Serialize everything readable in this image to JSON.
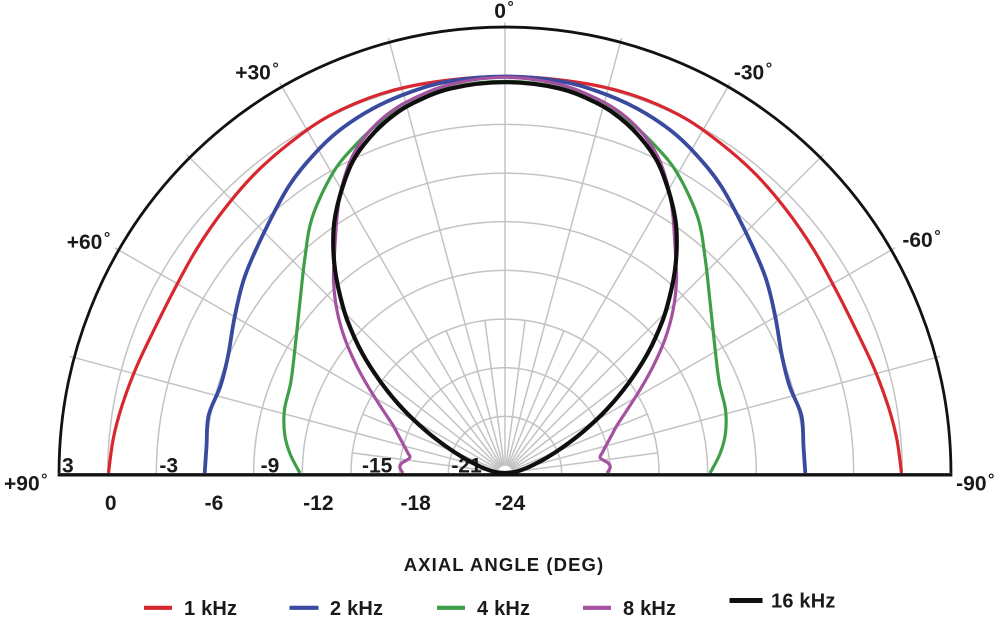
{
  "page": {
    "background": "#ffffff",
    "text_color": "#1a1a1a"
  },
  "chart_data": {
    "type": "line",
    "subtype": "half-polar-directivity",
    "title": "",
    "xlabel": "AXIAL ANGLE (DEG)",
    "radial_unit": "dB",
    "radial_range_db": [
      3,
      -24
    ],
    "ring_step_db": 3,
    "radial_ticks_above_axis": {
      "labels": [
        "3",
        "-3",
        "-9",
        "-15",
        "-21"
      ],
      "values_db": [
        3,
        -3,
        -9,
        -15,
        -21
      ]
    },
    "radial_ticks_below_axis": {
      "labels": [
        "0",
        "-6",
        "-12",
        "-18",
        "-24"
      ],
      "values_db": [
        0,
        -6,
        -12,
        -18,
        -24
      ]
    },
    "angle_ticks": [
      {
        "label": "0°",
        "deg": 0
      },
      {
        "label": "+30°",
        "deg": 30
      },
      {
        "label": "-30°",
        "deg": -30
      },
      {
        "label": "+60°",
        "deg": 60
      },
      {
        "label": "-60°",
        "deg": -60
      },
      {
        "label": "+90°",
        "deg": 90
      },
      {
        "label": "-90°",
        "deg": -90
      }
    ],
    "grid": {
      "color": "#c3c3c5",
      "spoke_major_step_deg": 15,
      "spoke_minor_step_deg": 7.5,
      "minor_spokes_end_db": -15,
      "outer_ring_db": 3,
      "inner_ring_db": -24
    },
    "axis_color": "#121212",
    "legend_position": "bottom",
    "series": [
      {
        "name": "1 kHz",
        "color": "#d7282f",
        "symmetric": true,
        "points_deg_db": [
          [
            0,
            -0.05
          ],
          [
            10,
            0.0
          ],
          [
            18,
            0.1
          ],
          [
            26,
            0.05
          ],
          [
            33,
            -0.2
          ],
          [
            40,
            -0.45
          ],
          [
            47,
            -0.75
          ],
          [
            54,
            -1.0
          ],
          [
            61,
            -1.18
          ],
          [
            68,
            -1.12
          ],
          [
            74,
            -0.85
          ],
          [
            80,
            -0.52
          ],
          [
            85,
            -0.25
          ],
          [
            90,
            -0.05
          ]
        ]
      },
      {
        "name": "2 kHz",
        "color": "#3a4a9e",
        "symmetric": true,
        "points_deg_db": [
          [
            0,
            -0.05
          ],
          [
            8,
            -0.1
          ],
          [
            14,
            -0.3
          ],
          [
            20,
            -0.6
          ],
          [
            26,
            -1.05
          ],
          [
            31,
            -1.6
          ],
          [
            37,
            -2.35
          ],
          [
            45,
            -3.5
          ],
          [
            53,
            -4.4
          ],
          [
            60,
            -5.25
          ],
          [
            67,
            -5.95
          ],
          [
            73,
            -6.15
          ],
          [
            79,
            -5.88
          ],
          [
            85,
            -6.02
          ],
          [
            90,
            -5.98
          ]
        ]
      },
      {
        "name": "4 kHz",
        "color": "#3f9f48",
        "symmetric": true,
        "points_deg_db": [
          [
            0,
            -0.35
          ],
          [
            8,
            -0.5
          ],
          [
            14,
            -0.95
          ],
          [
            20,
            -1.6
          ],
          [
            25,
            -2.35
          ],
          [
            30,
            -3.2
          ],
          [
            37,
            -4.75
          ],
          [
            43,
            -6.4
          ],
          [
            50,
            -8.0
          ],
          [
            59,
            -9.4
          ],
          [
            67,
            -10.15
          ],
          [
            74,
            -10.35
          ],
          [
            80,
            -10.7
          ],
          [
            85,
            -11.2
          ],
          [
            90,
            -11.85
          ]
        ]
      },
      {
        "name": "8 kHz",
        "color": "#a4519f",
        "symmetric": true,
        "points_deg_db": [
          [
            0,
            -0.1
          ],
          [
            8,
            -0.3
          ],
          [
            14,
            -0.75
          ],
          [
            18,
            -1.2
          ],
          [
            22,
            -1.9
          ],
          [
            26,
            -2.9
          ],
          [
            30,
            -4.3
          ],
          [
            33,
            -5.5
          ],
          [
            36,
            -6.7
          ],
          [
            39,
            -7.75
          ],
          [
            42,
            -8.7
          ],
          [
            46,
            -10.1
          ],
          [
            50,
            -11.6
          ],
          [
            54,
            -13.15
          ],
          [
            58,
            -14.6
          ],
          [
            63,
            -16.1
          ],
          [
            67,
            -17.0
          ],
          [
            70,
            -17.45
          ],
          [
            74,
            -17.95
          ],
          [
            78,
            -18.35
          ],
          [
            81,
            -18.55
          ],
          [
            84.5,
            -18.1
          ],
          [
            87,
            -18.0
          ],
          [
            90,
            -18.2
          ]
        ]
      },
      {
        "name": "16 kHz",
        "color": "#0f0f0f",
        "symmetric": true,
        "points_deg_db": [
          [
            0,
            -0.4
          ],
          [
            8,
            -0.55
          ],
          [
            14,
            -1.0
          ],
          [
            18,
            -1.5
          ],
          [
            22,
            -2.2
          ],
          [
            26,
            -3.1
          ],
          [
            30,
            -4.35
          ],
          [
            34,
            -5.7
          ],
          [
            37,
            -6.9
          ],
          [
            40,
            -8.2
          ],
          [
            43,
            -9.6
          ],
          [
            46,
            -11.0
          ],
          [
            50,
            -13.0
          ],
          [
            54,
            -15.1
          ],
          [
            58,
            -17.1
          ],
          [
            62,
            -19.0
          ],
          [
            66,
            -20.6
          ],
          [
            70,
            -21.8
          ],
          [
            75,
            -22.85
          ],
          [
            80,
            -23.5
          ],
          [
            85,
            -23.95
          ],
          [
            90,
            -24.45
          ]
        ]
      }
    ]
  }
}
